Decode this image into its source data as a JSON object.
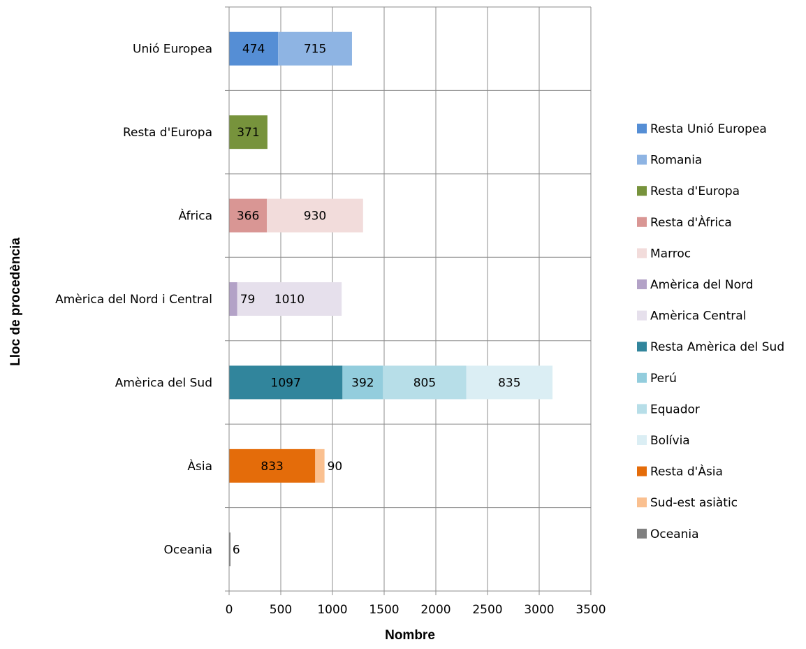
{
  "chart_data": {
    "type": "bar",
    "orientation": "horizontal",
    "stacked": true,
    "xlabel": "Nombre",
    "ylabel": "Lloc de procedència",
    "xlim": [
      0,
      3500
    ],
    "xticks": [
      0,
      500,
      1000,
      1500,
      2000,
      2500,
      3000,
      3500
    ],
    "grid": true,
    "legend_position": "right",
    "categories": [
      {
        "label": "Unió Europea",
        "segments": [
          {
            "series": "Resta Unió Europea",
            "value": 474,
            "label": "474"
          },
          {
            "series": "Romania",
            "value": 715,
            "label": "715"
          }
        ]
      },
      {
        "label": "Resta d'Europa",
        "segments": [
          {
            "series": "Resta d'Europa",
            "value": 371,
            "label": "371"
          }
        ]
      },
      {
        "label": "Àfrica",
        "segments": [
          {
            "series": "Resta d'Àfrica",
            "value": 366,
            "label": "366"
          },
          {
            "series": "Marroc",
            "value": 930,
            "label": "930"
          }
        ]
      },
      {
        "label": "Amèrica del Nord i Central",
        "segments": [
          {
            "series": "Amèrica del Nord",
            "value": 79,
            "label": "79"
          },
          {
            "series": "Amèrica Central",
            "value": 1010,
            "label": "1010"
          }
        ]
      },
      {
        "label": "Amèrica del Sud",
        "segments": [
          {
            "series": "Resta Amèrica del Sud",
            "value": 1097,
            "label": "1097"
          },
          {
            "series": "Perú",
            "value": 392,
            "label": "392"
          },
          {
            "series": "Equador",
            "value": 805,
            "label": "805"
          },
          {
            "series": "Bolívia",
            "value": 835,
            "label": "835"
          }
        ]
      },
      {
        "label": "Àsia",
        "segments": [
          {
            "series": "Resta d'Àsia",
            "value": 833,
            "label": "833"
          },
          {
            "series": "Sud-est asiàtic",
            "value": 90,
            "label": "90"
          }
        ]
      },
      {
        "label": "Oceania",
        "segments": [
          {
            "series": "Oceania",
            "value": 6,
            "label": "6"
          }
        ]
      }
    ],
    "series": [
      {
        "name": "Resta Unió Europea",
        "color": "#558ED5"
      },
      {
        "name": "Romania",
        "color": "#8EB4E3"
      },
      {
        "name": "Resta d'Europa",
        "color": "#77933C"
      },
      {
        "name": "Resta d'Àfrica",
        "color": "#D99694"
      },
      {
        "name": "Marroc",
        "color": "#F2DCDB"
      },
      {
        "name": "Amèrica del Nord",
        "color": "#B3A2C7"
      },
      {
        "name": "Amèrica Central",
        "color": "#E6E0EC"
      },
      {
        "name": "Resta Amèrica del Sud",
        "color": "#31859C"
      },
      {
        "name": "Perú",
        "color": "#93CDDD"
      },
      {
        "name": "Equador",
        "color": "#B7DEE8"
      },
      {
        "name": "Bolívia",
        "color": "#DBEEF4"
      },
      {
        "name": "Resta d'Àsia",
        "color": "#E46C0A"
      },
      {
        "name": "Sud-est asiàtic",
        "color": "#FAC090"
      },
      {
        "name": "Oceania",
        "color": "#808080"
      }
    ]
  }
}
